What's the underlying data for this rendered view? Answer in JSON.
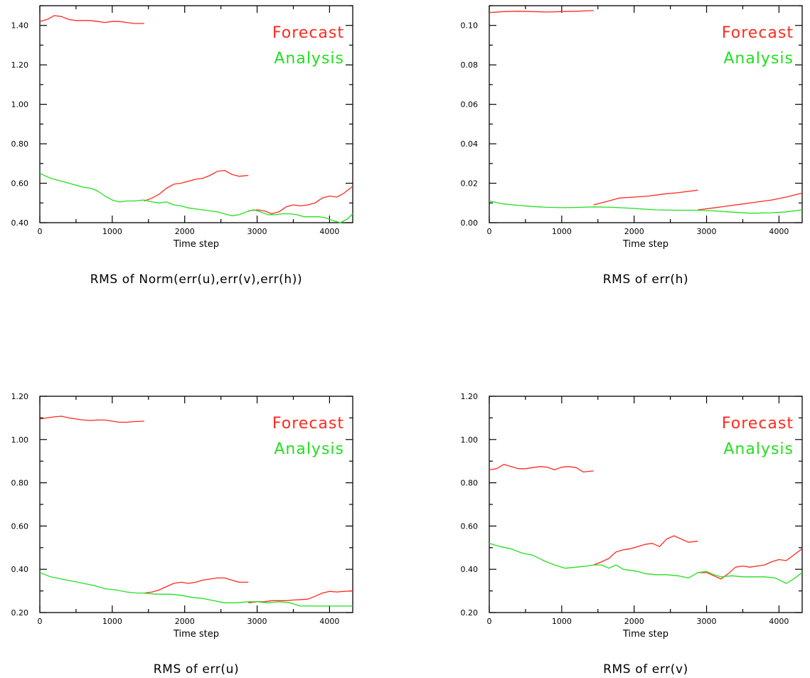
{
  "chart_data": [
    {
      "type": "line",
      "title": "RMS of Norm(err(u),err(v),err(h))",
      "xlabel": "Time step",
      "ylabel": "",
      "xlim": [
        0,
        4320
      ],
      "ylim": [
        0.4,
        1.5
      ],
      "x_ticks": [
        0,
        1000,
        2000,
        3000,
        4000
      ],
      "y_ticks": [
        "0.40",
        "0.60",
        "0.80",
        "1.00",
        "1.20",
        "1.40"
      ],
      "y_tick_values": [
        0.4,
        0.6,
        0.8,
        1.0,
        1.2,
        1.4
      ],
      "legend": {
        "placement": "top-right",
        "entries": [
          "Forecast",
          "Analysis"
        ]
      },
      "series": [
        {
          "name": "Forecast",
          "color": "#ff2a1f",
          "segments": [
            {
              "x": [
                0,
                100,
                200,
                300,
                400,
                500,
                600,
                700,
                800,
                900,
                1000,
                1100,
                1200,
                1300,
                1440
              ],
              "y": [
                1.42,
                1.43,
                1.45,
                1.445,
                1.43,
                1.425,
                1.425,
                1.425,
                1.42,
                1.415,
                1.42,
                1.42,
                1.415,
                1.41,
                1.41
              ]
            },
            {
              "x": [
                1440,
                1550,
                1650,
                1750,
                1850,
                1950,
                2050,
                2150,
                2250,
                2350,
                2450,
                2550,
                2650,
                2750,
                2880
              ],
              "y": [
                0.51,
                0.525,
                0.545,
                0.575,
                0.595,
                0.6,
                0.61,
                0.62,
                0.625,
                0.64,
                0.66,
                0.665,
                0.645,
                0.635,
                0.64
              ]
            },
            {
              "x": [
                2880,
                3000,
                3100,
                3200,
                3300,
                3400,
                3500,
                3600,
                3700,
                3800,
                3900,
                4000,
                4100,
                4200,
                4320
              ],
              "y": [
                0.46,
                0.465,
                0.46,
                0.445,
                0.455,
                0.48,
                0.49,
                0.485,
                0.49,
                0.5,
                0.525,
                0.535,
                0.53,
                0.55,
                0.585
              ]
            }
          ]
        },
        {
          "name": "Analysis",
          "color": "#22e01f",
          "segments": [
            {
              "x": [
                0,
                150,
                300,
                450,
                600,
                700,
                800,
                900,
                1000,
                1100,
                1200,
                1300,
                1440,
                1550,
                1650,
                1750,
                1850,
                1950,
                2050,
                2150,
                2250,
                2350,
                2450,
                2550,
                2650,
                2750,
                2850,
                2950,
                3050,
                3150,
                3250,
                3350,
                3450,
                3550,
                3650,
                3750,
                3850,
                3950,
                4050,
                4150,
                4250,
                4320
              ],
              "y": [
                0.65,
                0.625,
                0.61,
                0.595,
                0.58,
                0.575,
                0.56,
                0.535,
                0.515,
                0.505,
                0.51,
                0.51,
                0.515,
                0.505,
                0.5,
                0.505,
                0.49,
                0.485,
                0.475,
                0.47,
                0.465,
                0.46,
                0.455,
                0.445,
                0.435,
                0.44,
                0.455,
                0.465,
                0.455,
                0.44,
                0.44,
                0.445,
                0.445,
                0.44,
                0.43,
                0.43,
                0.43,
                0.425,
                0.41,
                0.4,
                0.42,
                0.445
              ]
            }
          ]
        }
      ]
    },
    {
      "type": "line",
      "title": "RMS of err(h)",
      "xlabel": "Time step",
      "ylabel": "",
      "xlim": [
        0,
        4320
      ],
      "ylim": [
        0.0,
        0.11
      ],
      "x_ticks": [
        0,
        1000,
        2000,
        3000,
        4000
      ],
      "y_ticks": [
        "0.00",
        "0.02",
        "0.04",
        "0.06",
        "0.08",
        "0.10"
      ],
      "y_tick_values": [
        0.0,
        0.02,
        0.04,
        0.06,
        0.08,
        0.1
      ],
      "legend": {
        "placement": "top-right",
        "entries": [
          "Forecast",
          "Analysis"
        ]
      },
      "series": [
        {
          "name": "Forecast",
          "color": "#ff2a1f",
          "segments": [
            {
              "x": [
                0,
                200,
                400,
                600,
                800,
                1000,
                1200,
                1440
              ],
              "y": [
                0.1065,
                0.107,
                0.1072,
                0.107,
                0.1068,
                0.107,
                0.1072,
                0.1075
              ]
            },
            {
              "x": [
                1440,
                1600,
                1800,
                2000,
                2200,
                2400,
                2600,
                2880
              ],
              "y": [
                0.009,
                0.0105,
                0.0125,
                0.013,
                0.0135,
                0.0145,
                0.0152,
                0.0165
              ]
            },
            {
              "x": [
                2880,
                3100,
                3300,
                3500,
                3700,
                3900,
                4100,
                4320
              ],
              "y": [
                0.0065,
                0.0075,
                0.0085,
                0.0095,
                0.0105,
                0.0115,
                0.013,
                0.015
              ]
            }
          ]
        },
        {
          "name": "Analysis",
          "color": "#22e01f",
          "segments": [
            {
              "x": [
                0,
                200,
                400,
                600,
                800,
                1000,
                1200,
                1440,
                1700,
                2000,
                2300,
                2600,
                2880,
                3100,
                3300,
                3600,
                3900,
                4100,
                4320
              ],
              "y": [
                0.011,
                0.0095,
                0.0088,
                0.0082,
                0.0078,
                0.0076,
                0.0077,
                0.008,
                0.0078,
                0.0072,
                0.0065,
                0.0063,
                0.0063,
                0.006,
                0.0055,
                0.0048,
                0.005,
                0.0055,
                0.0065
              ]
            }
          ]
        }
      ]
    },
    {
      "type": "line",
      "title": "RMS of err(u)",
      "xlabel": "Time step",
      "ylabel": "",
      "xlim": [
        0,
        4320
      ],
      "ylim": [
        0.2,
        1.2
      ],
      "x_ticks": [
        0,
        1000,
        2000,
        3000,
        4000
      ],
      "y_ticks": [
        "0.20",
        "0.40",
        "0.60",
        "0.80",
        "1.00",
        "1.20"
      ],
      "y_tick_values": [
        0.2,
        0.4,
        0.6,
        0.8,
        1.0,
        1.2
      ],
      "legend": {
        "placement": "top-right",
        "entries": [
          "Forecast",
          "Analysis"
        ]
      },
      "series": [
        {
          "name": "Forecast",
          "color": "#ff2a1f",
          "segments": [
            {
              "x": [
                0,
                100,
                200,
                300,
                400,
                500,
                600,
                700,
                800,
                900,
                1000,
                1100,
                1200,
                1300,
                1440
              ],
              "y": [
                1.095,
                1.1,
                1.105,
                1.108,
                1.1,
                1.095,
                1.09,
                1.088,
                1.09,
                1.09,
                1.085,
                1.08,
                1.08,
                1.083,
                1.085
              ]
            },
            {
              "x": [
                1440,
                1550,
                1650,
                1750,
                1850,
                1950,
                2050,
                2150,
                2250,
                2350,
                2450,
                2550,
                2650,
                2750,
                2880
              ],
              "y": [
                0.29,
                0.295,
                0.305,
                0.32,
                0.335,
                0.34,
                0.335,
                0.34,
                0.35,
                0.355,
                0.36,
                0.36,
                0.35,
                0.34,
                0.34
              ]
            },
            {
              "x": [
                2880,
                3000,
                3100,
                3200,
                3300,
                3400,
                3500,
                3600,
                3700,
                3800,
                3900,
                4000,
                4100,
                4200,
                4320
              ],
              "y": [
                0.245,
                0.25,
                0.25,
                0.255,
                0.255,
                0.255,
                0.258,
                0.26,
                0.262,
                0.275,
                0.29,
                0.298,
                0.295,
                0.298,
                0.3
              ]
            }
          ]
        },
        {
          "name": "Analysis",
          "color": "#22e01f",
          "segments": [
            {
              "x": [
                0,
                150,
                300,
                450,
                600,
                750,
                900,
                1050,
                1200,
                1350,
                1440,
                1600,
                1800,
                1950,
                2100,
                2250,
                2400,
                2550,
                2700,
                2880,
                3000,
                3150,
                3300,
                3450,
                3600,
                3800,
                4000,
                4150,
                4320
              ],
              "y": [
                0.385,
                0.365,
                0.355,
                0.345,
                0.335,
                0.325,
                0.31,
                0.305,
                0.295,
                0.29,
                0.29,
                0.285,
                0.285,
                0.28,
                0.27,
                0.265,
                0.255,
                0.245,
                0.245,
                0.25,
                0.25,
                0.245,
                0.25,
                0.245,
                0.23,
                0.23,
                0.23,
                0.23,
                0.23
              ]
            }
          ]
        }
      ]
    },
    {
      "type": "line",
      "title": "RMS of err(v)",
      "xlabel": "Time step",
      "ylabel": "",
      "xlim": [
        0,
        4320
      ],
      "ylim": [
        0.2,
        1.2
      ],
      "x_ticks": [
        0,
        1000,
        2000,
        3000,
        4000
      ],
      "y_ticks": [
        "0.20",
        "0.40",
        "0.60",
        "0.80",
        "1.00",
        "1.20"
      ],
      "y_tick_values": [
        0.2,
        0.4,
        0.6,
        0.8,
        1.0,
        1.2
      ],
      "legend": {
        "placement": "top-right",
        "entries": [
          "Forecast",
          "Analysis"
        ]
      },
      "series": [
        {
          "name": "Forecast",
          "color": "#ff2a1f",
          "segments": [
            {
              "x": [
                0,
                100,
                200,
                300,
                400,
                500,
                600,
                700,
                800,
                900,
                1000,
                1100,
                1200,
                1300,
                1440
              ],
              "y": [
                0.86,
                0.865,
                0.885,
                0.875,
                0.865,
                0.865,
                0.87,
                0.875,
                0.872,
                0.86,
                0.872,
                0.875,
                0.87,
                0.85,
                0.855
              ]
            },
            {
              "x": [
                1440,
                1550,
                1650,
                1750,
                1850,
                1950,
                2050,
                2150,
                2250,
                2350,
                2450,
                2550,
                2650,
                2750,
                2880
              ],
              "y": [
                0.42,
                0.435,
                0.45,
                0.48,
                0.49,
                0.495,
                0.505,
                0.515,
                0.52,
                0.505,
                0.54,
                0.555,
                0.54,
                0.525,
                0.53
              ]
            },
            {
              "x": [
                2880,
                3000,
                3100,
                3200,
                3300,
                3400,
                3500,
                3600,
                3700,
                3800,
                3900,
                4000,
                4100,
                4200,
                4320
              ],
              "y": [
                0.385,
                0.385,
                0.37,
                0.355,
                0.38,
                0.41,
                0.415,
                0.41,
                0.415,
                0.42,
                0.435,
                0.445,
                0.44,
                0.465,
                0.495
              ]
            }
          ]
        },
        {
          "name": "Analysis",
          "color": "#22e01f",
          "segments": [
            {
              "x": [
                0,
                150,
                300,
                450,
                600,
                750,
                900,
                1050,
                1200,
                1350,
                1440,
                1550,
                1650,
                1750,
                1850,
                1950,
                2050,
                2150,
                2300,
                2450,
                2600,
                2750,
                2880,
                3000,
                3100,
                3200,
                3350,
                3500,
                3650,
                3800,
                3950,
                4100,
                4200,
                4320
              ],
              "y": [
                0.52,
                0.505,
                0.495,
                0.475,
                0.465,
                0.44,
                0.42,
                0.405,
                0.41,
                0.415,
                0.42,
                0.42,
                0.405,
                0.42,
                0.4,
                0.395,
                0.39,
                0.38,
                0.375,
                0.375,
                0.37,
                0.36,
                0.385,
                0.39,
                0.375,
                0.365,
                0.37,
                0.365,
                0.365,
                0.365,
                0.36,
                0.335,
                0.355,
                0.385
              ]
            }
          ]
        }
      ]
    }
  ]
}
